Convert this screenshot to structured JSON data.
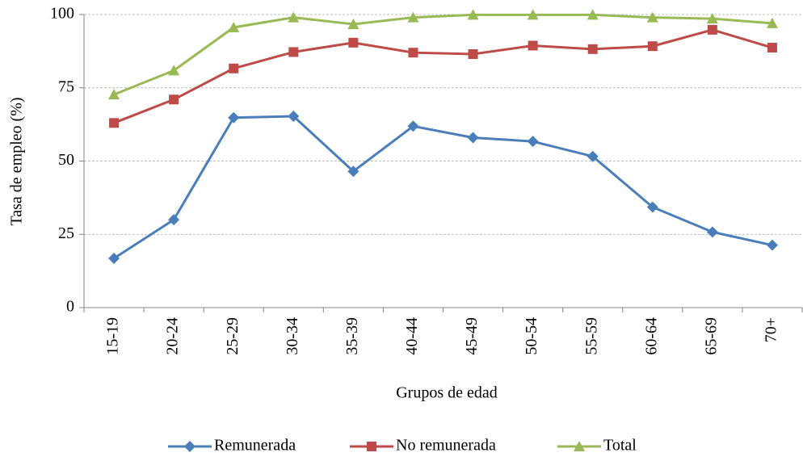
{
  "chart_data": {
    "type": "line",
    "x_label": "Grupos de edad",
    "y_label": "Tasa de empleo (%)",
    "categories": [
      "15-19",
      "20-24",
      "25-29",
      "30-34",
      "35-39",
      "40-44",
      "45-49",
      "50-54",
      "55-59",
      "60-64",
      "65-69",
      "70+"
    ],
    "series": [
      {
        "name": "Remunerada",
        "color": "#4a7ebb",
        "marker": "diamond",
        "values": [
          16.8,
          30,
          64.8,
          65.3,
          46.5,
          61.9,
          58,
          56.7,
          51.6,
          34.3,
          25.8,
          21.3
        ]
      },
      {
        "name": "No remunerada",
        "color": "#be4b48",
        "marker": "square",
        "values": [
          63,
          71,
          81.6,
          87.2,
          90.4,
          87,
          86.5,
          89.4,
          88.2,
          89.2,
          94.8,
          88.7
        ]
      },
      {
        "name": "Total",
        "color": "#98b954",
        "marker": "triangle",
        "values": [
          72.7,
          80.9,
          95.6,
          99,
          96.7,
          99,
          99.9,
          99.9,
          99.9,
          99,
          98.6,
          97
        ]
      }
    ],
    "ylim": [
      0,
      100
    ],
    "yticks": [
      0,
      25,
      50,
      75,
      100
    ],
    "grid": true,
    "legend": "bottom"
  }
}
